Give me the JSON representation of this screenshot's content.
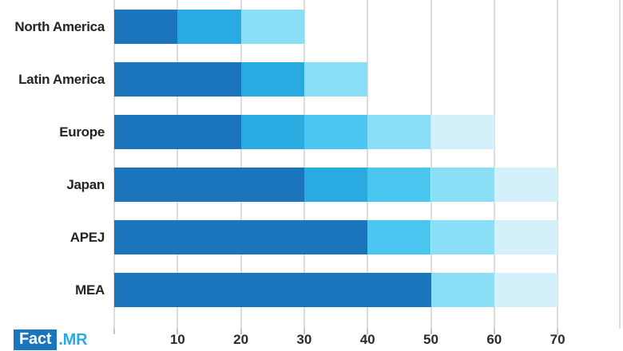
{
  "logo": {
    "fact": "Fact",
    "mr": ".MR",
    "box_color": "#1b75bc",
    "mr_color": "#29aae1"
  },
  "chart_data": {
    "type": "bar",
    "orientation": "horizontal-stacked",
    "title": "",
    "xlabel": "",
    "ylabel": "",
    "xlim": [
      0,
      80
    ],
    "grid": "vertical",
    "gridline_color": "#dcdcdc",
    "tick_color": "#c3c3c3",
    "label_color": "#262324",
    "palette": {
      "dark_blue": "#1b75bc",
      "medium_blue": "#29aae1",
      "bright_cyan": "#4ac6f0",
      "light_cyan": "#8adef6",
      "pale_cyan": "#d3f0fb"
    },
    "categories": [
      "North America",
      "Latin America",
      "Europe",
      "Japan",
      "APEJ",
      "MEA"
    ],
    "totals": [
      30,
      40,
      60,
      70,
      70,
      70
    ],
    "bars": [
      {
        "label": "North America",
        "total": 30,
        "segments": [
          {
            "start": 0,
            "end": 10,
            "color": "#1b75bc"
          },
          {
            "start": 10,
            "end": 20,
            "color": "#29aae1"
          },
          {
            "start": 20,
            "end": 30,
            "color": "#8adef6"
          }
        ]
      },
      {
        "label": "Latin America",
        "total": 40,
        "segments": [
          {
            "start": 0,
            "end": 20,
            "color": "#1b75bc"
          },
          {
            "start": 20,
            "end": 30,
            "color": "#29aae1"
          },
          {
            "start": 30,
            "end": 40,
            "color": "#8adef6"
          }
        ]
      },
      {
        "label": "Europe",
        "total": 60,
        "segments": [
          {
            "start": 0,
            "end": 20,
            "color": "#1b75bc"
          },
          {
            "start": 20,
            "end": 30,
            "color": "#29aae1"
          },
          {
            "start": 30,
            "end": 40,
            "color": "#4ac6f0"
          },
          {
            "start": 40,
            "end": 50,
            "color": "#8adef6"
          },
          {
            "start": 50,
            "end": 60,
            "color": "#d3f0fb"
          }
        ]
      },
      {
        "label": "Japan",
        "total": 70,
        "segments": [
          {
            "start": 0,
            "end": 30,
            "color": "#1b75bc"
          },
          {
            "start": 30,
            "end": 40,
            "color": "#29aae1"
          },
          {
            "start": 40,
            "end": 50,
            "color": "#4ac6f0"
          },
          {
            "start": 50,
            "end": 60,
            "color": "#8adef6"
          },
          {
            "start": 60,
            "end": 70,
            "color": "#d3f0fb"
          }
        ]
      },
      {
        "label": "APEJ",
        "total": 70,
        "segments": [
          {
            "start": 0,
            "end": 40,
            "color": "#1b75bc"
          },
          {
            "start": 40,
            "end": 50,
            "color": "#4ac6f0"
          },
          {
            "start": 50,
            "end": 60,
            "color": "#8adef6"
          },
          {
            "start": 60,
            "end": 70,
            "color": "#d3f0fb"
          }
        ]
      },
      {
        "label": "MEA",
        "total": 70,
        "segments": [
          {
            "start": 0,
            "end": 50,
            "color": "#1b75bc"
          },
          {
            "start": 50,
            "end": 60,
            "color": "#8adef6"
          },
          {
            "start": 60,
            "end": 70,
            "color": "#d3f0fb"
          }
        ]
      }
    ],
    "xticks": [
      0,
      10,
      20,
      30,
      40,
      50,
      60,
      70
    ],
    "xtick_labels": [
      "",
      "10",
      "20",
      "30",
      "40",
      "50",
      "60",
      "70"
    ]
  }
}
